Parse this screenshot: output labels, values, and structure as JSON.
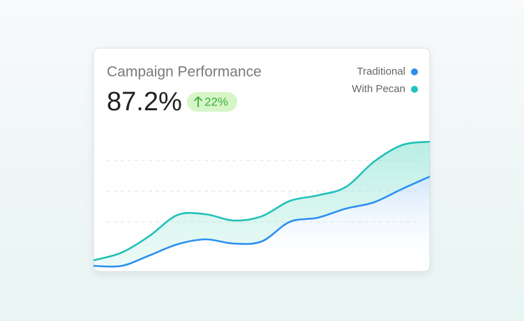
{
  "chart_data": {
    "type": "line",
    "title": "Campaign Performance",
    "headline": "87.2%",
    "badge": "22%",
    "ylim": [
      0,
      100
    ],
    "series": [
      {
        "name": "Traditional",
        "color": "#2b8ff0",
        "values": [
          4.5,
          4.5,
          12,
          20,
          23.5,
          20.5,
          22,
          36,
          39,
          45.5,
          50,
          59.5,
          68.5
        ]
      },
      {
        "name": "With Pecan",
        "color": "#22c1b9",
        "values": [
          8.5,
          14,
          26,
          41,
          41.5,
          37,
          40,
          51,
          55,
          61,
          79,
          91,
          93.5
        ]
      }
    ]
  }
}
